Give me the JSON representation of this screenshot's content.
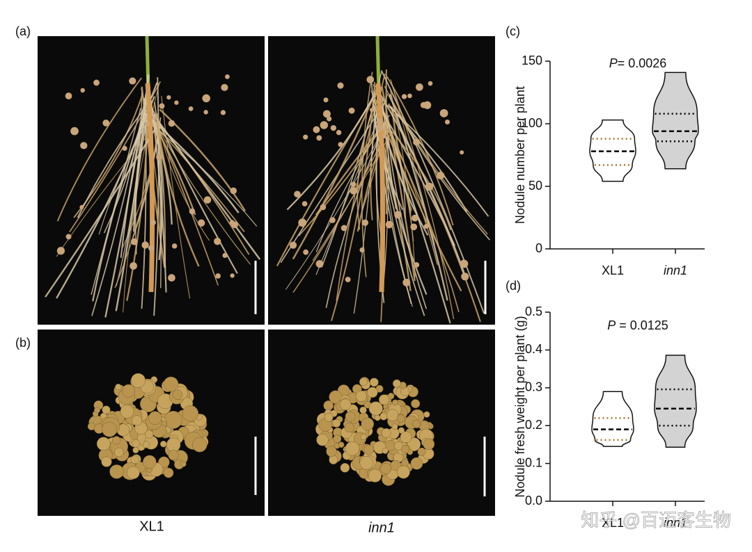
{
  "panel_labels": {
    "a": "(a)",
    "b": "(b)",
    "c": "(c)",
    "d": "(d)"
  },
  "photo_labels": [
    "XL1",
    "inn1"
  ],
  "watermark": "知乎 @百迈客生物",
  "chart_data": [
    {
      "type": "violin",
      "ylabel": "Nodule number per plant",
      "annotation": {
        "symbol": "P",
        "text": "= 0.0026"
      },
      "categories": [
        "XL1",
        "inn1"
      ],
      "italic_categories": [
        false,
        true
      ],
      "violins": [
        {
          "min": 54,
          "q1": 67,
          "median": 78,
          "q3": 88,
          "max": 103,
          "fill": "#ffffff",
          "quartile_color": "#a0782a"
        },
        {
          "min": 64,
          "q1": 86,
          "median": 94,
          "q3": 108,
          "max": 141,
          "fill": "#d3d3d3",
          "quartile_color": "#000000"
        }
      ],
      "ylim": [
        0,
        150
      ],
      "yticks": [
        0,
        50,
        100,
        150
      ]
    },
    {
      "type": "violin",
      "ylabel": "Nodule fresh weight per plant (g)",
      "annotation": {
        "symbol": "P",
        "text": " = 0.0125"
      },
      "categories": [
        "XL1",
        "inn1"
      ],
      "italic_categories": [
        false,
        true
      ],
      "violins": [
        {
          "min": 0.145,
          "q1": 0.162,
          "median": 0.19,
          "q3": 0.22,
          "max": 0.29,
          "fill": "#ffffff",
          "quartile_color": "#a0782a"
        },
        {
          "min": 0.143,
          "q1": 0.2,
          "median": 0.245,
          "q3": 0.296,
          "max": 0.386,
          "fill": "#d3d3d3",
          "quartile_color": "#000000"
        }
      ],
      "ylim": [
        0,
        0.5
      ],
      "yticks": [
        {
          "value": 0,
          "label": "0.0"
        },
        0.1,
        0.2,
        0.3,
        0.4,
        0.5
      ]
    }
  ]
}
